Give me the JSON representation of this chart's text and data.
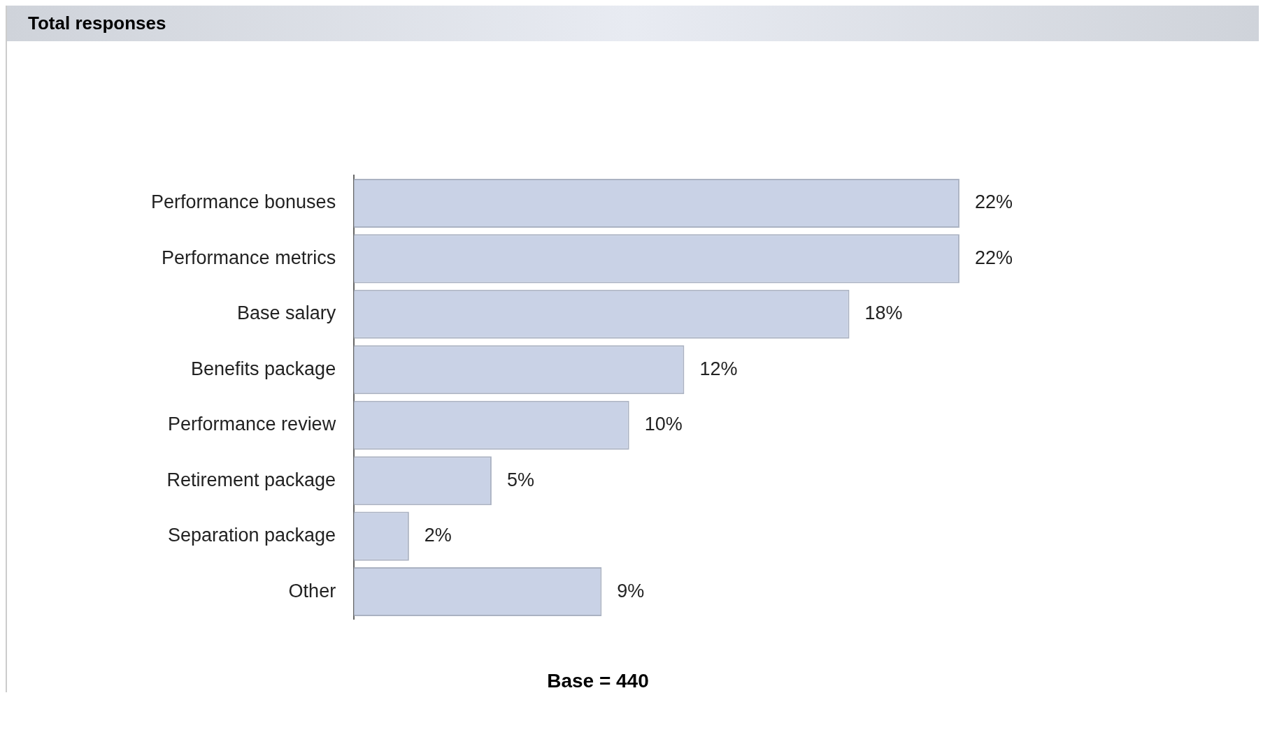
{
  "chart_data": {
    "type": "bar",
    "orientation": "horizontal",
    "title": "Total responses",
    "categories": [
      "Performance bonuses",
      "Performance metrics",
      "Base salary",
      "Benefits package",
      "Performance review",
      "Retirement package",
      "Separation package",
      "Other"
    ],
    "values": [
      22,
      22,
      18,
      12,
      10,
      5,
      2,
      9
    ],
    "value_labels": [
      "22%",
      "22%",
      "18%",
      "12%",
      "10%",
      "5%",
      "2%",
      "9%"
    ],
    "color": "#c9d2e6",
    "tick_labels": "y",
    "annotations": [
      "Base = 440"
    ]
  }
}
